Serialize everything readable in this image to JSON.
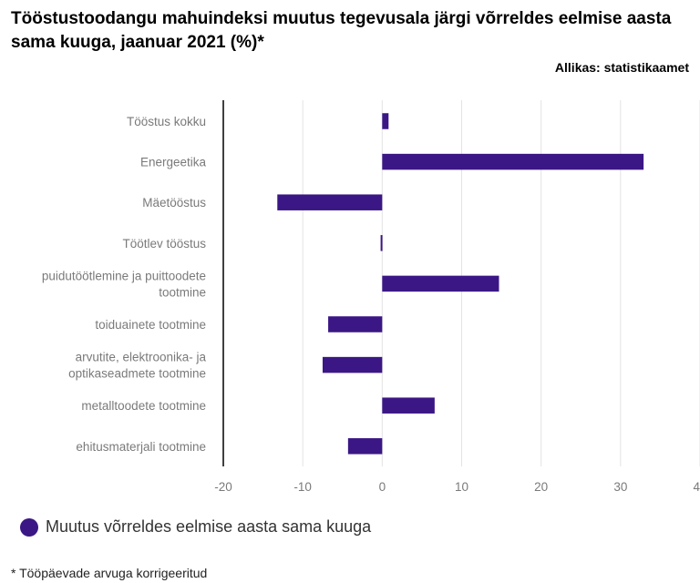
{
  "title": "Tööstustoodangu mahuindeksi muutus tegevusala järgi võrreldes eelmise aasta sama kuuga, jaanuar 2021 (%)*",
  "source": "Allikas: statistikaamet",
  "footnote": "* Tööpäevade arvuga korrigeeritud",
  "colors": {
    "bar": "#3b1785",
    "grid": "#e3e3e3",
    "axis": "#000000",
    "label": "#7a7a7a"
  },
  "chart_data": {
    "type": "bar",
    "orientation": "horizontal",
    "categories": [
      [
        "Tööstus kokku"
      ],
      [
        "Energeetika"
      ],
      [
        "Mäetööstus"
      ],
      [
        "Töötlev tööstus"
      ],
      [
        "puidutöötlemine ja puittoodete",
        "tootmine"
      ],
      [
        "toiduainete tootmine"
      ],
      [
        "arvutite, elektroonika- ja",
        "optikaseadmete tootmine"
      ],
      [
        "metalltoodete tootmine"
      ],
      [
        "ehitusmaterjali tootmine"
      ]
    ],
    "series": [
      {
        "name": "Muutus võrreldes eelmise aasta sama kuuga",
        "values": [
          0.8,
          32.9,
          -13.2,
          -0.2,
          14.7,
          -6.8,
          -7.5,
          6.6,
          -4.3
        ]
      }
    ],
    "xlim": [
      -20,
      40
    ],
    "xticks": [
      -20,
      -10,
      0,
      10,
      20,
      30,
      40
    ],
    "grid": true,
    "legend_position": "bottom-left"
  }
}
